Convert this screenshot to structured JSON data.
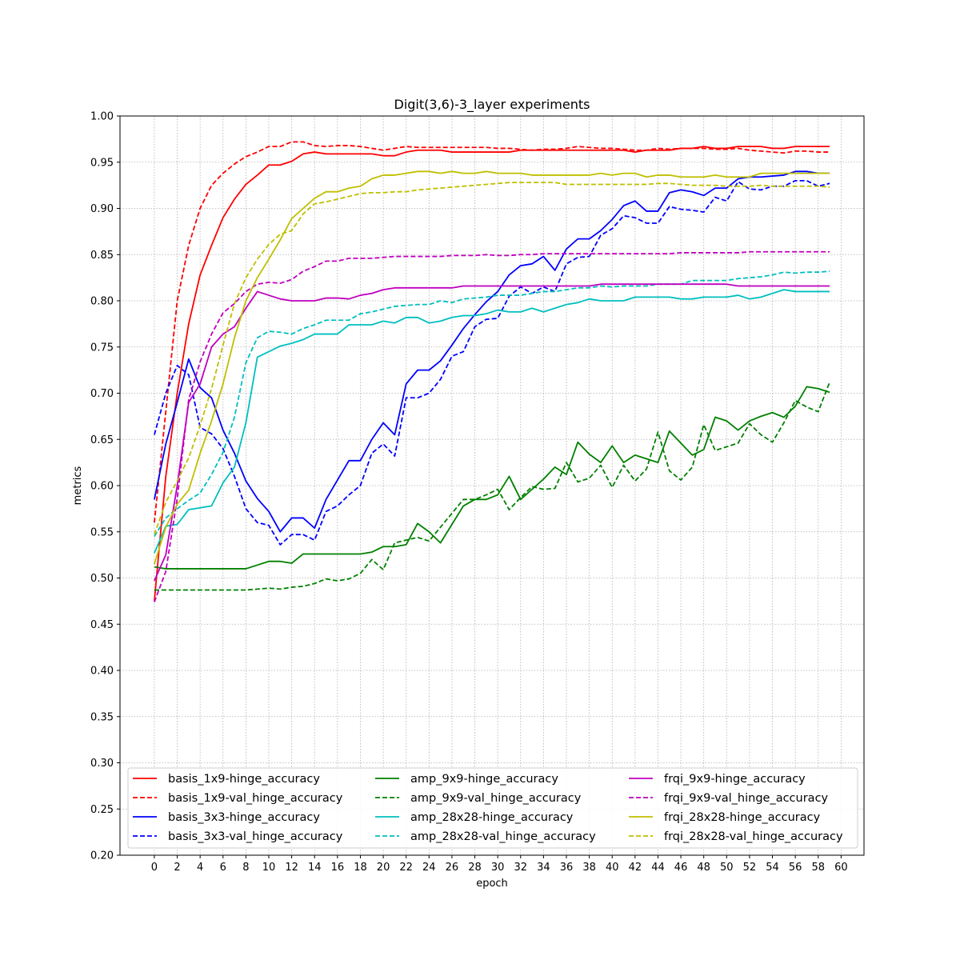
{
  "chart_data": {
    "type": "line",
    "title": "Digit(3,6)-3_layer experiments",
    "xlabel": "epoch",
    "ylabel": "metrics",
    "xlim": [
      -3,
      62
    ],
    "ylim": [
      0.2,
      1.0
    ],
    "xticks": [
      "0",
      "2",
      "4",
      "6",
      "8",
      "10",
      "12",
      "14",
      "16",
      "18",
      "20",
      "22",
      "24",
      "26",
      "28",
      "30",
      "32",
      "34",
      "36",
      "38",
      "40",
      "42",
      "44",
      "46",
      "48",
      "50",
      "52",
      "54",
      "56",
      "58",
      "60"
    ],
    "yticks": [
      "0.20",
      "0.25",
      "0.30",
      "0.35",
      "0.40",
      "0.45",
      "0.50",
      "0.55",
      "0.60",
      "0.65",
      "0.70",
      "0.75",
      "0.80",
      "0.85",
      "0.90",
      "0.95",
      "1.00"
    ],
    "grid": true,
    "legend_position": "lower-center",
    "legend_columns": 3,
    "series": [
      {
        "name": "basis_1x9-hinge_accuracy",
        "color": "#ff0000",
        "dash": "solid",
        "values": [
          0.475,
          0.61,
          0.7,
          0.775,
          0.828,
          0.86,
          0.89,
          0.91,
          0.926,
          0.936,
          0.947,
          0.947,
          0.951,
          0.959,
          0.961,
          0.959,
          0.959,
          0.959,
          0.959,
          0.959,
          0.957,
          0.957,
          0.961,
          0.963,
          0.963,
          0.963,
          0.961,
          0.961,
          0.961,
          0.961,
          0.961,
          0.961,
          0.963,
          0.963,
          0.963,
          0.963,
          0.963,
          0.963,
          0.963,
          0.963,
          0.963,
          0.963,
          0.961,
          0.963,
          0.963,
          0.963,
          0.965,
          0.965,
          0.967,
          0.965,
          0.965,
          0.967,
          0.967,
          0.967,
          0.965,
          0.965,
          0.967,
          0.967,
          0.967,
          0.967
        ]
      },
      {
        "name": "basis_1x9-val_hinge_accuracy",
        "color": "#ff0000",
        "dash": "dashed",
        "values": [
          0.56,
          0.68,
          0.8,
          0.86,
          0.9,
          0.925,
          0.938,
          0.948,
          0.956,
          0.961,
          0.967,
          0.967,
          0.972,
          0.972,
          0.968,
          0.967,
          0.968,
          0.968,
          0.967,
          0.965,
          0.963,
          0.965,
          0.967,
          0.966,
          0.966,
          0.966,
          0.966,
          0.966,
          0.966,
          0.966,
          0.965,
          0.965,
          0.964,
          0.963,
          0.964,
          0.964,
          0.965,
          0.967,
          0.966,
          0.965,
          0.965,
          0.964,
          0.963,
          0.963,
          0.965,
          0.964,
          0.965,
          0.965,
          0.965,
          0.964,
          0.964,
          0.965,
          0.963,
          0.962,
          0.961,
          0.96,
          0.962,
          0.962,
          0.961,
          0.961
        ]
      },
      {
        "name": "basis_3x3-hinge_accuracy",
        "color": "#0000ff",
        "dash": "solid",
        "values": [
          0.585,
          0.645,
          0.69,
          0.737,
          0.706,
          0.695,
          0.66,
          0.635,
          0.605,
          0.586,
          0.572,
          0.55,
          0.565,
          0.565,
          0.554,
          0.585,
          0.606,
          0.627,
          0.627,
          0.65,
          0.668,
          0.655,
          0.71,
          0.725,
          0.725,
          0.735,
          0.752,
          0.77,
          0.785,
          0.799,
          0.81,
          0.828,
          0.838,
          0.84,
          0.848,
          0.833,
          0.856,
          0.867,
          0.867,
          0.876,
          0.888,
          0.903,
          0.908,
          0.897,
          0.897,
          0.917,
          0.92,
          0.918,
          0.914,
          0.922,
          0.922,
          0.932,
          0.934,
          0.934,
          0.935,
          0.936,
          0.94,
          0.94,
          0.938,
          0.938
        ]
      },
      {
        "name": "basis_3x3-val_hinge_accuracy",
        "color": "#0000ff",
        "dash": "dashed",
        "values": [
          0.655,
          0.7,
          0.73,
          0.72,
          0.663,
          0.656,
          0.64,
          0.61,
          0.575,
          0.56,
          0.557,
          0.536,
          0.547,
          0.547,
          0.541,
          0.572,
          0.578,
          0.59,
          0.6,
          0.635,
          0.645,
          0.632,
          0.695,
          0.695,
          0.7,
          0.715,
          0.74,
          0.745,
          0.772,
          0.78,
          0.781,
          0.805,
          0.815,
          0.808,
          0.815,
          0.81,
          0.84,
          0.847,
          0.848,
          0.871,
          0.878,
          0.892,
          0.89,
          0.884,
          0.884,
          0.902,
          0.899,
          0.898,
          0.896,
          0.912,
          0.908,
          0.929,
          0.921,
          0.92,
          0.924,
          0.924,
          0.93,
          0.93,
          0.924,
          0.927
        ]
      },
      {
        "name": "amp_9x9-hinge_accuracy",
        "color": "#008000",
        "dash": "solid",
        "values": [
          0.512,
          0.51,
          0.51,
          0.51,
          0.51,
          0.51,
          0.51,
          0.51,
          0.51,
          0.514,
          0.518,
          0.518,
          0.516,
          0.526,
          0.526,
          0.526,
          0.526,
          0.526,
          0.526,
          0.528,
          0.534,
          0.534,
          0.536,
          0.559,
          0.55,
          0.538,
          0.558,
          0.578,
          0.585,
          0.585,
          0.59,
          0.61,
          0.585,
          0.596,
          0.607,
          0.62,
          0.612,
          0.647,
          0.634,
          0.625,
          0.643,
          0.625,
          0.633,
          0.629,
          0.625,
          0.659,
          0.646,
          0.633,
          0.639,
          0.674,
          0.67,
          0.66,
          0.67,
          0.675,
          0.679,
          0.674,
          0.686,
          0.707,
          0.705,
          0.701
        ]
      },
      {
        "name": "amp_9x9-val_hinge_accuracy",
        "color": "#008000",
        "dash": "dashed",
        "values": [
          0.487,
          0.487,
          0.487,
          0.487,
          0.487,
          0.487,
          0.487,
          0.487,
          0.487,
          0.488,
          0.489,
          0.488,
          0.49,
          0.491,
          0.494,
          0.499,
          0.497,
          0.499,
          0.505,
          0.52,
          0.509,
          0.538,
          0.541,
          0.544,
          0.54,
          0.555,
          0.57,
          0.585,
          0.585,
          0.59,
          0.596,
          0.574,
          0.587,
          0.599,
          0.596,
          0.597,
          0.625,
          0.604,
          0.608,
          0.622,
          0.598,
          0.622,
          0.605,
          0.618,
          0.658,
          0.616,
          0.606,
          0.62,
          0.666,
          0.638,
          0.642,
          0.646,
          0.667,
          0.655,
          0.647,
          0.668,
          0.692,
          0.685,
          0.68,
          0.712
        ]
      },
      {
        "name": "amp_28x28-hinge_accuracy",
        "color": "#00bfbf",
        "dash": "solid",
        "values": [
          0.527,
          0.556,
          0.558,
          0.574,
          0.576,
          0.578,
          0.603,
          0.62,
          0.668,
          0.739,
          0.745,
          0.751,
          0.754,
          0.758,
          0.764,
          0.764,
          0.764,
          0.774,
          0.774,
          0.774,
          0.778,
          0.776,
          0.782,
          0.782,
          0.776,
          0.778,
          0.782,
          0.784,
          0.784,
          0.786,
          0.79,
          0.788,
          0.788,
          0.792,
          0.788,
          0.792,
          0.796,
          0.798,
          0.802,
          0.8,
          0.8,
          0.8,
          0.804,
          0.804,
          0.804,
          0.804,
          0.802,
          0.802,
          0.804,
          0.804,
          0.804,
          0.806,
          0.802,
          0.804,
          0.808,
          0.812,
          0.81,
          0.81,
          0.81,
          0.81
        ]
      },
      {
        "name": "amp_28x28-val_hinge_accuracy",
        "color": "#00bfbf",
        "dash": "dashed",
        "values": [
          0.545,
          0.565,
          0.575,
          0.584,
          0.592,
          0.612,
          0.636,
          0.674,
          0.733,
          0.76,
          0.767,
          0.766,
          0.764,
          0.77,
          0.774,
          0.779,
          0.779,
          0.779,
          0.786,
          0.788,
          0.791,
          0.794,
          0.795,
          0.796,
          0.796,
          0.8,
          0.798,
          0.802,
          0.803,
          0.804,
          0.806,
          0.806,
          0.806,
          0.808,
          0.81,
          0.81,
          0.812,
          0.814,
          0.814,
          0.816,
          0.815,
          0.816,
          0.816,
          0.816,
          0.818,
          0.818,
          0.818,
          0.822,
          0.822,
          0.822,
          0.822,
          0.824,
          0.825,
          0.826,
          0.828,
          0.831,
          0.83,
          0.831,
          0.831,
          0.832
        ]
      },
      {
        "name": "frqi_9x9-hinge_accuracy",
        "color": "#bf00bf",
        "dash": "solid",
        "values": [
          0.497,
          0.525,
          0.6,
          0.69,
          0.71,
          0.75,
          0.764,
          0.772,
          0.792,
          0.81,
          0.806,
          0.802,
          0.8,
          0.8,
          0.8,
          0.803,
          0.803,
          0.802,
          0.806,
          0.808,
          0.812,
          0.814,
          0.814,
          0.814,
          0.814,
          0.814,
          0.814,
          0.816,
          0.816,
          0.816,
          0.816,
          0.816,
          0.816,
          0.816,
          0.816,
          0.816,
          0.816,
          0.816,
          0.816,
          0.818,
          0.818,
          0.818,
          0.818,
          0.818,
          0.818,
          0.818,
          0.818,
          0.818,
          0.818,
          0.818,
          0.818,
          0.816,
          0.816,
          0.816,
          0.816,
          0.816,
          0.816,
          0.816,
          0.816,
          0.816
        ]
      },
      {
        "name": "frqi_9x9-val_hinge_accuracy",
        "color": "#bf00bf",
        "dash": "dashed",
        "values": [
          0.474,
          0.507,
          0.586,
          0.693,
          0.734,
          0.764,
          0.787,
          0.797,
          0.81,
          0.818,
          0.82,
          0.819,
          0.823,
          0.832,
          0.837,
          0.843,
          0.843,
          0.846,
          0.846,
          0.846,
          0.847,
          0.848,
          0.848,
          0.848,
          0.848,
          0.848,
          0.849,
          0.849,
          0.849,
          0.85,
          0.849,
          0.849,
          0.85,
          0.85,
          0.851,
          0.851,
          0.851,
          0.851,
          0.851,
          0.851,
          0.851,
          0.851,
          0.851,
          0.851,
          0.851,
          0.851,
          0.852,
          0.852,
          0.852,
          0.852,
          0.852,
          0.852,
          0.853,
          0.853,
          0.853,
          0.853,
          0.853,
          0.853,
          0.853,
          0.853
        ]
      },
      {
        "name": "frqi_28x28-hinge_accuracy",
        "color": "#bfbf00",
        "dash": "solid",
        "values": [
          0.515,
          0.555,
          0.58,
          0.595,
          0.635,
          0.67,
          0.71,
          0.76,
          0.8,
          0.825,
          0.845,
          0.866,
          0.889,
          0.9,
          0.911,
          0.918,
          0.918,
          0.922,
          0.924,
          0.932,
          0.936,
          0.936,
          0.938,
          0.94,
          0.94,
          0.938,
          0.94,
          0.938,
          0.938,
          0.94,
          0.938,
          0.938,
          0.938,
          0.936,
          0.936,
          0.936,
          0.936,
          0.936,
          0.936,
          0.938,
          0.936,
          0.938,
          0.938,
          0.934,
          0.936,
          0.936,
          0.934,
          0.934,
          0.934,
          0.936,
          0.934,
          0.934,
          0.934,
          0.938,
          0.938,
          0.938,
          0.938,
          0.938,
          0.938,
          0.938
        ]
      },
      {
        "name": "frqi_28x28-val_hinge_accuracy",
        "color": "#bfbf00",
        "dash": "dashed",
        "values": [
          0.547,
          0.582,
          0.605,
          0.63,
          0.665,
          0.705,
          0.752,
          0.797,
          0.825,
          0.845,
          0.861,
          0.872,
          0.876,
          0.894,
          0.905,
          0.907,
          0.91,
          0.913,
          0.916,
          0.917,
          0.917,
          0.918,
          0.918,
          0.92,
          0.921,
          0.922,
          0.923,
          0.924,
          0.925,
          0.926,
          0.927,
          0.928,
          0.928,
          0.928,
          0.928,
          0.928,
          0.926,
          0.926,
          0.926,
          0.926,
          0.926,
          0.926,
          0.926,
          0.926,
          0.927,
          0.927,
          0.926,
          0.925,
          0.925,
          0.925,
          0.924,
          0.924,
          0.924,
          0.925,
          0.924,
          0.924,
          0.924,
          0.924,
          0.924,
          0.923
        ]
      }
    ]
  }
}
